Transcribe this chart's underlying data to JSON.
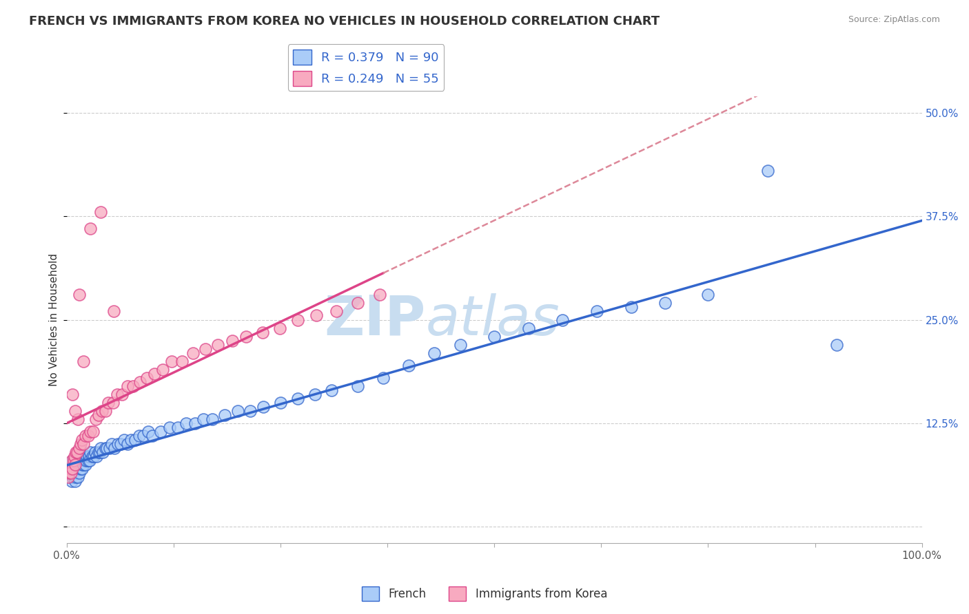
{
  "title": "FRENCH VS IMMIGRANTS FROM KOREA NO VEHICLES IN HOUSEHOLD CORRELATION CHART",
  "source": "Source: ZipAtlas.com",
  "ylabel": "No Vehicles in Household",
  "xlim": [
    0.0,
    1.0
  ],
  "ylim": [
    -0.02,
    0.52
  ],
  "xticks": [
    0.0,
    0.125,
    0.25,
    0.375,
    0.5,
    0.625,
    0.75,
    0.875,
    1.0
  ],
  "xticklabels": [
    "0.0%",
    "",
    "",
    "",
    "",
    "",
    "",
    "",
    "100.0%"
  ],
  "ytick_positions": [
    0.0,
    0.125,
    0.25,
    0.375,
    0.5
  ],
  "yticklabels": [
    "",
    "12.5%",
    "25.0%",
    "37.5%",
    "50.0%"
  ],
  "french_R": 0.379,
  "french_N": 90,
  "korean_R": 0.249,
  "korean_N": 55,
  "french_color": "#aaccf8",
  "french_line_color": "#3366cc",
  "korean_color": "#f8aac0",
  "korean_line_color": "#dd4488",
  "korean_dash_color": "#dd8899",
  "watermark_zip": "ZIP",
  "watermark_atlas": "atlas",
  "watermark_color": "#c8ddf0",
  "legend_label_french": "French",
  "legend_label_korean": "Immigrants from Korea",
  "background_color": "#ffffff",
  "grid_color": "#cccccc",
  "title_fontsize": 13,
  "axis_label_fontsize": 11,
  "tick_fontsize": 11,
  "legend_fontsize": 13,
  "french_scatter_x": [
    0.002,
    0.003,
    0.004,
    0.005,
    0.005,
    0.006,
    0.006,
    0.007,
    0.007,
    0.008,
    0.008,
    0.009,
    0.009,
    0.01,
    0.01,
    0.011,
    0.011,
    0.012,
    0.012,
    0.013,
    0.013,
    0.014,
    0.015,
    0.015,
    0.016,
    0.017,
    0.018,
    0.018,
    0.019,
    0.02,
    0.021,
    0.022,
    0.023,
    0.024,
    0.025,
    0.026,
    0.027,
    0.028,
    0.03,
    0.032,
    0.033,
    0.035,
    0.037,
    0.039,
    0.04,
    0.042,
    0.045,
    0.047,
    0.05,
    0.053,
    0.056,
    0.06,
    0.063,
    0.067,
    0.071,
    0.075,
    0.08,
    0.085,
    0.09,
    0.095,
    0.1,
    0.11,
    0.12,
    0.13,
    0.14,
    0.15,
    0.16,
    0.17,
    0.185,
    0.2,
    0.215,
    0.23,
    0.25,
    0.27,
    0.29,
    0.31,
    0.34,
    0.37,
    0.4,
    0.43,
    0.46,
    0.5,
    0.54,
    0.58,
    0.62,
    0.66,
    0.7,
    0.75,
    0.82,
    0.9
  ],
  "french_scatter_y": [
    0.06,
    0.065,
    0.07,
    0.06,
    0.075,
    0.055,
    0.07,
    0.06,
    0.08,
    0.065,
    0.075,
    0.06,
    0.08,
    0.055,
    0.075,
    0.06,
    0.08,
    0.065,
    0.075,
    0.06,
    0.08,
    0.07,
    0.065,
    0.08,
    0.07,
    0.075,
    0.07,
    0.085,
    0.075,
    0.075,
    0.08,
    0.075,
    0.08,
    0.085,
    0.08,
    0.085,
    0.08,
    0.09,
    0.085,
    0.085,
    0.09,
    0.085,
    0.09,
    0.09,
    0.095,
    0.09,
    0.095,
    0.095,
    0.095,
    0.1,
    0.095,
    0.1,
    0.1,
    0.105,
    0.1,
    0.105,
    0.105,
    0.11,
    0.11,
    0.115,
    0.11,
    0.115,
    0.12,
    0.12,
    0.125,
    0.125,
    0.13,
    0.13,
    0.135,
    0.14,
    0.14,
    0.145,
    0.15,
    0.155,
    0.16,
    0.165,
    0.17,
    0.18,
    0.195,
    0.21,
    0.22,
    0.23,
    0.24,
    0.25,
    0.26,
    0.265,
    0.27,
    0.28,
    0.43,
    0.22
  ],
  "korean_scatter_x": [
    0.002,
    0.003,
    0.004,
    0.005,
    0.006,
    0.007,
    0.008,
    0.009,
    0.01,
    0.011,
    0.012,
    0.013,
    0.015,
    0.016,
    0.018,
    0.02,
    0.022,
    0.025,
    0.028,
    0.031,
    0.034,
    0.037,
    0.041,
    0.045,
    0.049,
    0.054,
    0.059,
    0.065,
    0.071,
    0.078,
    0.086,
    0.094,
    0.103,
    0.112,
    0.123,
    0.135,
    0.148,
    0.162,
    0.177,
    0.194,
    0.21,
    0.229,
    0.249,
    0.27,
    0.292,
    0.315,
    0.34,
    0.366,
    0.007,
    0.01,
    0.015,
    0.02,
    0.028,
    0.04,
    0.055
  ],
  "korean_scatter_y": [
    0.06,
    0.065,
    0.07,
    0.065,
    0.08,
    0.07,
    0.08,
    0.085,
    0.075,
    0.09,
    0.09,
    0.13,
    0.095,
    0.1,
    0.105,
    0.1,
    0.11,
    0.11,
    0.115,
    0.115,
    0.13,
    0.135,
    0.14,
    0.14,
    0.15,
    0.15,
    0.16,
    0.16,
    0.17,
    0.17,
    0.175,
    0.18,
    0.185,
    0.19,
    0.2,
    0.2,
    0.21,
    0.215,
    0.22,
    0.225,
    0.23,
    0.235,
    0.24,
    0.25,
    0.255,
    0.26,
    0.27,
    0.28,
    0.16,
    0.14,
    0.28,
    0.2,
    0.36,
    0.38,
    0.26
  ]
}
